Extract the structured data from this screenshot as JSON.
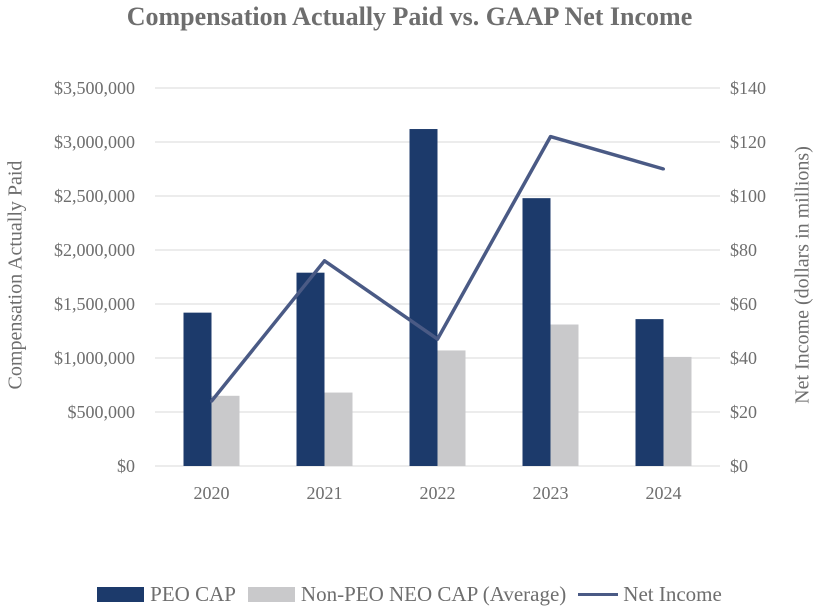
{
  "chart_data": {
    "type": "bar",
    "title": "Compensation Actually Paid vs. GAAP Net Income",
    "categories": [
      "2020",
      "2021",
      "2022",
      "2023",
      "2024"
    ],
    "series": [
      {
        "name": "PEO CAP",
        "kind": "bar",
        "axis": "left",
        "color": "#1c3a6b",
        "values": [
          1420000,
          1790000,
          3120000,
          2480000,
          1360000
        ]
      },
      {
        "name": "Non-PEO NEO CAP (Average)",
        "kind": "bar",
        "axis": "left",
        "color": "#c9c9cb",
        "values": [
          650000,
          680000,
          1070000,
          1310000,
          1010000
        ]
      },
      {
        "name": "Net Income",
        "kind": "line",
        "axis": "right",
        "color": "#4a5a85",
        "values": [
          24,
          76,
          47,
          122,
          110
        ]
      }
    ],
    "ylabel": "Compensation Actually Paid",
    "ylabel_right": "Net Income (dollars in millions)",
    "ylim": [
      0,
      3500000
    ],
    "ylim_right": [
      0,
      140
    ],
    "yticks": [
      0,
      500000,
      1000000,
      1500000,
      2000000,
      2500000,
      3000000,
      3500000
    ],
    "ytick_labels": [
      "$0",
      "$500,000",
      "$1,000,000",
      "$1,500,000",
      "$2,000,000",
      "$2,500,000",
      "$3,000,000",
      "$3,500,000"
    ],
    "yticks_right": [
      0,
      20,
      40,
      60,
      80,
      100,
      120,
      140
    ],
    "ytick_labels_right": [
      "$0",
      "$20",
      "$40",
      "$60",
      "$80",
      "$100",
      "$120",
      "$140"
    ],
    "grid": true,
    "legend": "bottom"
  },
  "legend": {
    "peo": "PEO CAP",
    "neo": "Non-PEO NEO CAP (Average)",
    "net": "Net Income"
  }
}
